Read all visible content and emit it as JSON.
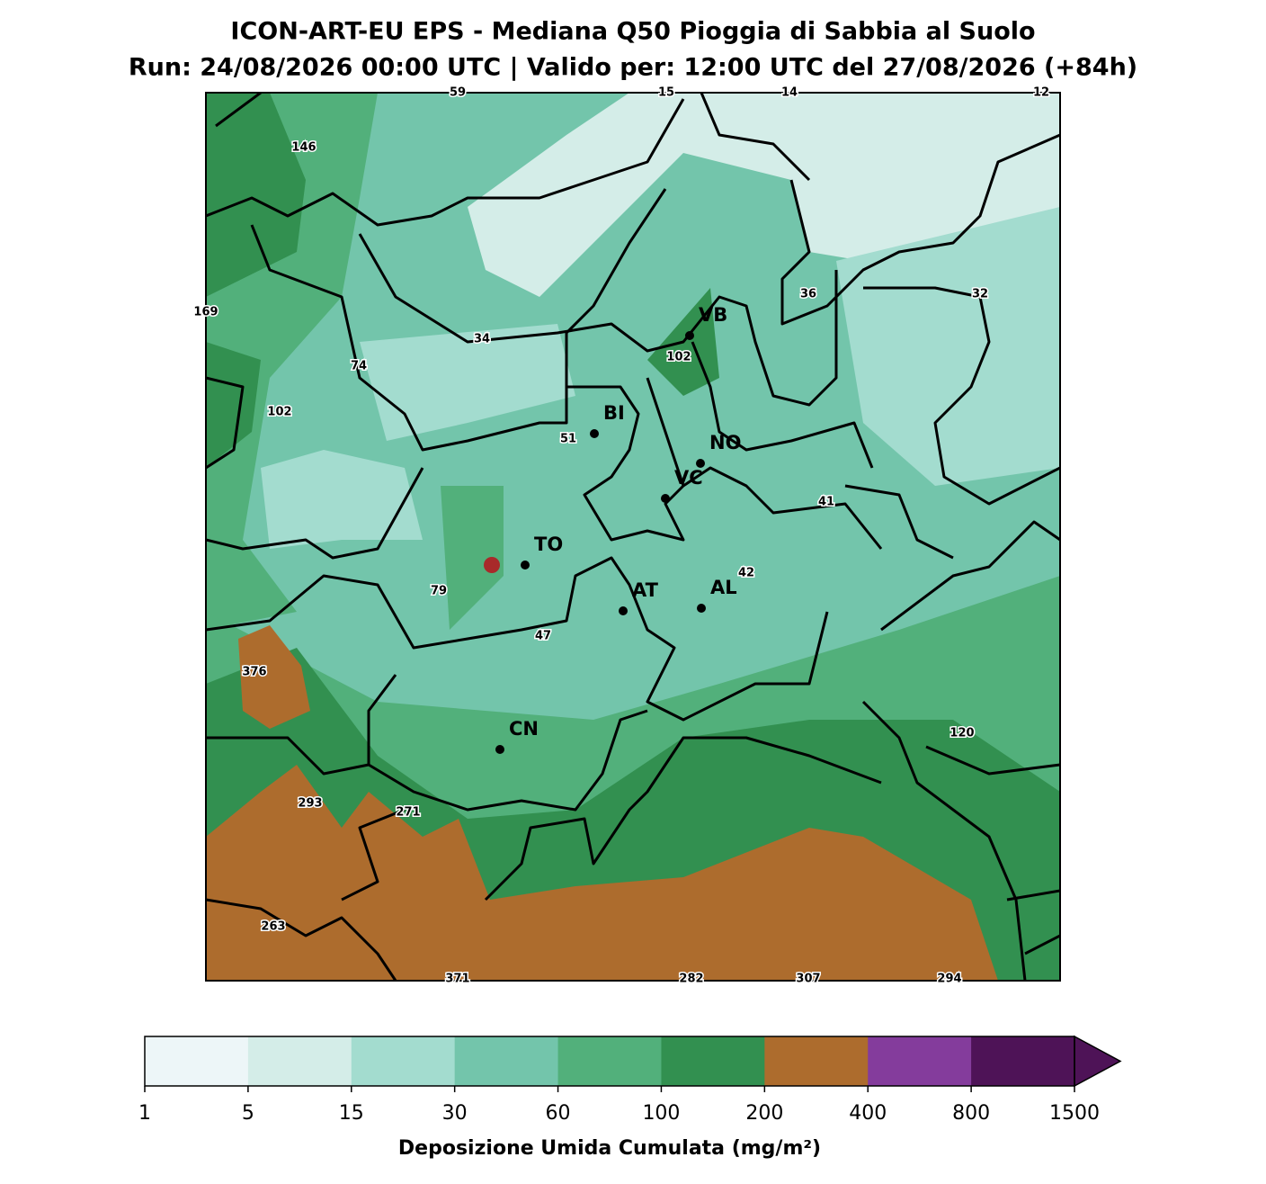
{
  "title": "ICON-ART-EU EPS - Mediana Q50 Pioggia di Sabbia al Suolo",
  "subtitle": "Run: 24/08/2026 00:00 UTC | Valido per: 12:00 UTC del 27/08/2026 (+84h)",
  "cities": [
    "VB",
    "BI",
    "NO",
    "VC",
    "TO",
    "AT",
    "AL",
    "CN"
  ],
  "map_values": [
    59,
    15,
    14,
    12,
    146,
    169,
    36,
    32,
    34,
    74,
    102,
    102,
    51,
    41,
    42,
    79,
    47,
    376,
    120,
    293,
    271,
    263,
    371,
    282,
    307,
    294
  ],
  "colorbar": {
    "label": "Deposizione Umida Cumulata (mg/m²)",
    "ticks": [
      1,
      5,
      15,
      30,
      60,
      100,
      200,
      400,
      800,
      1500
    ],
    "colors": [
      "#edf6f8",
      "#d4ede8",
      "#a3dccf",
      "#73c5ab",
      "#52b07b",
      "#329050",
      "#ad6c2d",
      "#843c9c",
      "#4e1357"
    ]
  }
}
